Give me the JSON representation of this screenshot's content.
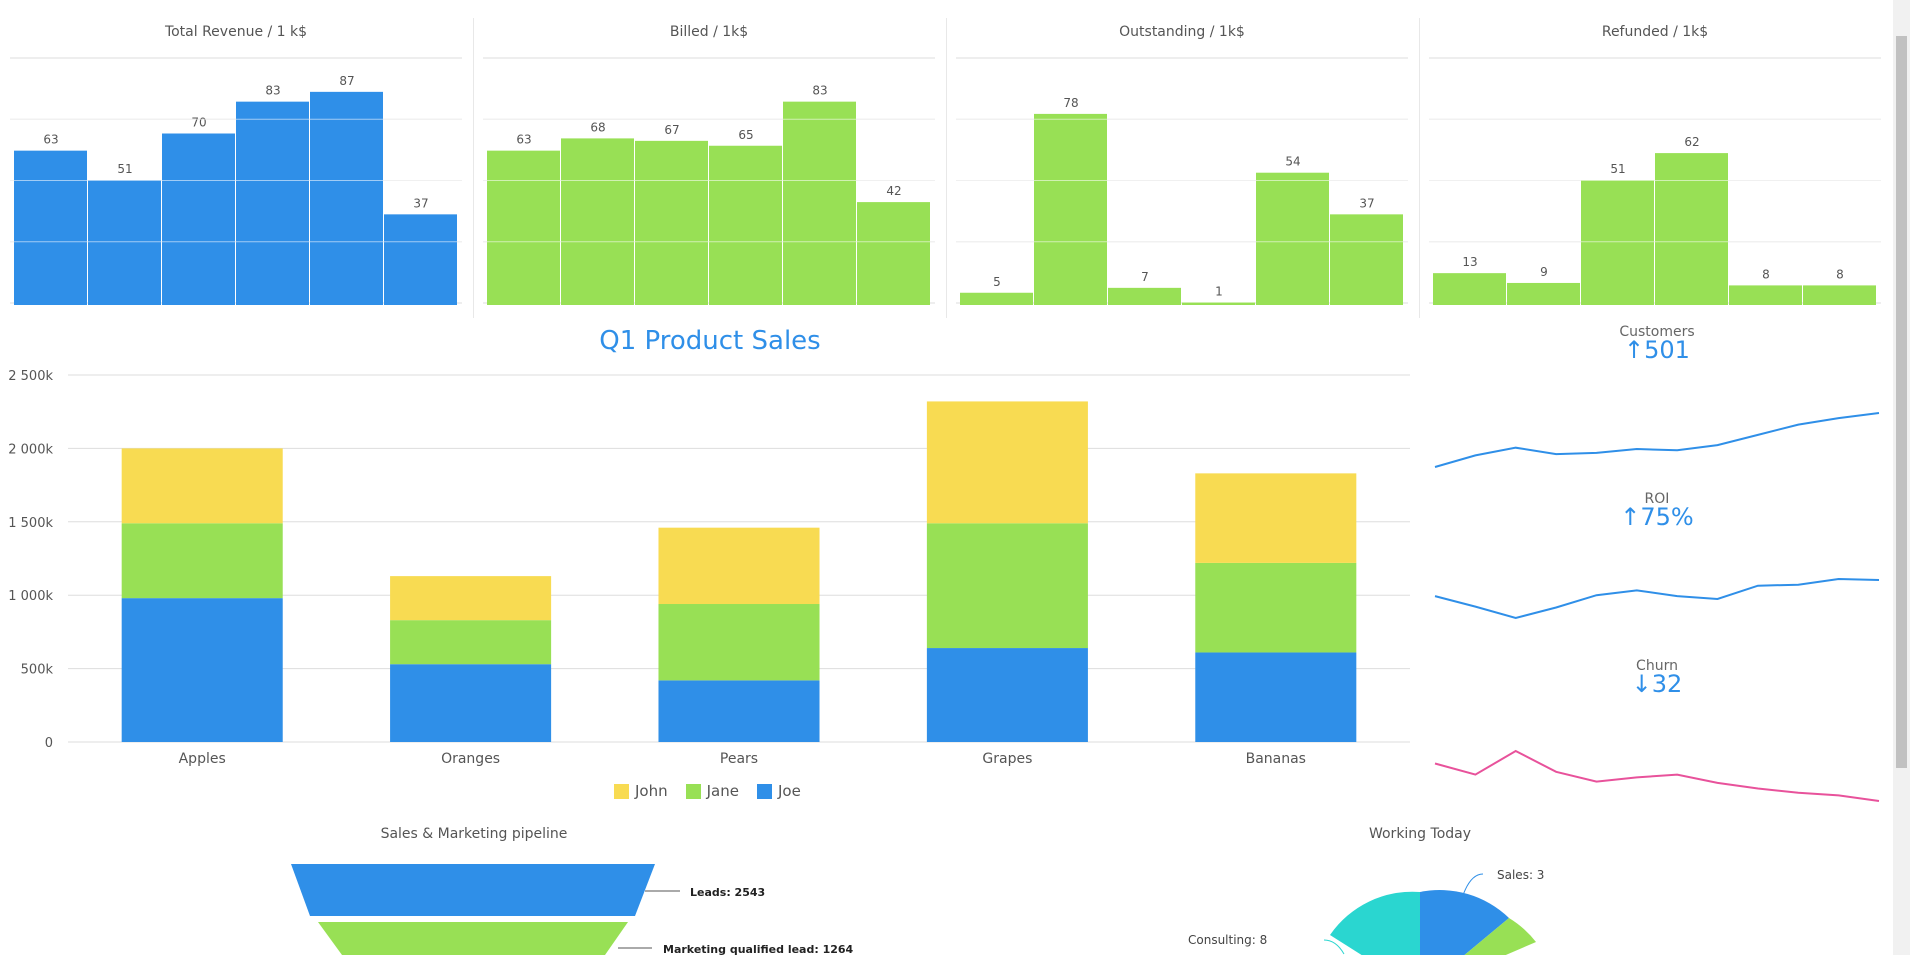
{
  "colors": {
    "blue": "#2f8fe8",
    "green": "#98e055",
    "yellow": "#f8db52",
    "pink": "#e8529b",
    "teal": "#2ad6d0",
    "grid": "#dddddd"
  },
  "mini_charts": [
    {
      "title": "Total Revenue / 1 k$",
      "color": "blue",
      "values": [
        63,
        51,
        70,
        83,
        87,
        37
      ]
    },
    {
      "title": "Billed / 1k$",
      "color": "green",
      "values": [
        63,
        68,
        67,
        65,
        83,
        42
      ]
    },
    {
      "title": "Outstanding / 1k$",
      "color": "green",
      "values": [
        5,
        78,
        7,
        1,
        54,
        37
      ]
    },
    {
      "title": "Refunded / 1k$",
      "color": "green",
      "values": [
        13,
        9,
        51,
        62,
        8,
        8
      ]
    }
  ],
  "chart_data": {
    "type": "bar",
    "stacked": true,
    "title": "Q1 Product Sales",
    "categories": [
      "Apples",
      "Oranges",
      "Pears",
      "Grapes",
      "Bananas"
    ],
    "series": [
      {
        "name": "Joe",
        "color": "blue",
        "values": [
          980000,
          530000,
          420000,
          640000,
          610000
        ]
      },
      {
        "name": "Jane",
        "color": "green",
        "values": [
          510000,
          300000,
          520000,
          850000,
          610000
        ]
      },
      {
        "name": "John",
        "color": "yellow",
        "values": [
          510000,
          300000,
          520000,
          830000,
          610000
        ]
      }
    ],
    "ylim": [
      0,
      2500000
    ],
    "ytick_labels": [
      "0",
      "500k",
      "1 000k",
      "1 500k",
      "2 000k",
      "2 500k"
    ],
    "legend": {
      "position": "bottom",
      "order": [
        "John",
        "Jane",
        "Joe"
      ]
    },
    "grid": true
  },
  "kpis": [
    {
      "label": "Customers",
      "value": "↑501",
      "color": "blue",
      "trend": [
        49,
        58,
        64,
        59,
        60,
        63,
        62,
        66,
        74,
        82,
        87,
        91
      ]
    },
    {
      "label": "ROI",
      "value": "↑75%",
      "color": "blue",
      "trend": [
        71,
        60,
        48,
        59,
        72,
        77,
        71,
        68,
        82,
        83,
        89,
        88
      ]
    },
    {
      "label": "Churn",
      "value": "↓32",
      "color": "pink",
      "trend": [
        52,
        44,
        61,
        46,
        39,
        42,
        44,
        38,
        34,
        31,
        29,
        25
      ]
    }
  ],
  "pipeline": {
    "title": "Sales & Marketing pipeline",
    "stages": [
      {
        "label": "Leads: 2543",
        "color": "blue"
      },
      {
        "label": "Marketing qualified lead: 1264",
        "color": "green"
      }
    ]
  },
  "working_today": {
    "title": "Working Today",
    "slices": [
      {
        "label": "Sales: 3",
        "value": 3,
        "color": "blue"
      },
      {
        "label": "Consulting: 8",
        "value": 8,
        "color": "teal"
      }
    ],
    "partial_slice_color": "green"
  }
}
